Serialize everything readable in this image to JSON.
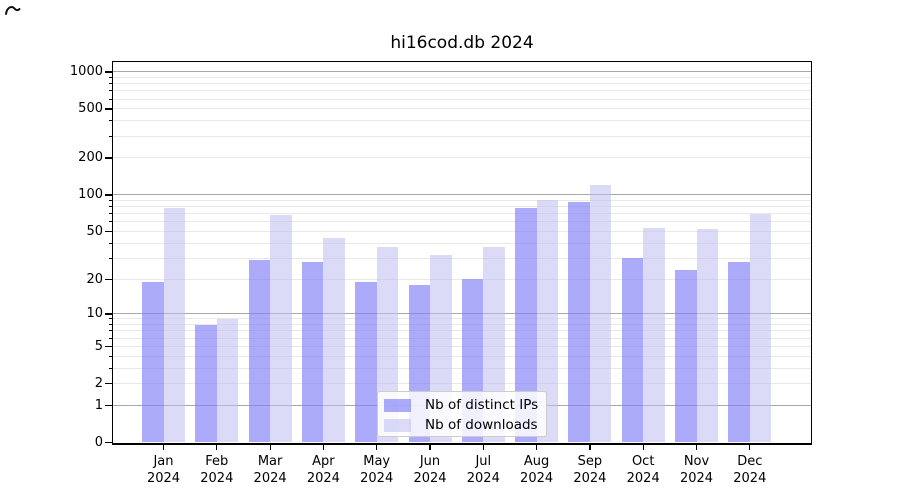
{
  "title": "hi16cod.db 2024",
  "chart_data": {
    "type": "bar",
    "title": "hi16cod.db 2024",
    "categories": [
      "Jan 2024",
      "Feb 2024",
      "Mar 2024",
      "Apr 2024",
      "May 2024",
      "Jun 2024",
      "Jul 2024",
      "Aug 2024",
      "Sep 2024",
      "Oct 2024",
      "Nov 2024",
      "Dec 2024"
    ],
    "series": [
      {
        "name": "Nb of distinct IPs",
        "color": "#aaaaf7",
        "fill": "rgba(124,124,246,0.64)",
        "values": [
          19,
          8,
          29,
          28,
          19,
          18,
          20,
          78,
          87,
          30,
          24,
          28
        ]
      },
      {
        "name": "Nb of downloads",
        "color": "#dcdcf7",
        "fill": "rgba(190,190,243,0.55)",
        "values": [
          78,
          9,
          68,
          44,
          37,
          32,
          37,
          90,
          120,
          53,
          52,
          70
        ]
      }
    ],
    "y_axis": {
      "scale": "log1p",
      "ticks": [
        0,
        1,
        2,
        5,
        10,
        20,
        50,
        100,
        200,
        500,
        1000
      ],
      "minor_ticks": [
        3,
        4,
        6,
        7,
        8,
        9,
        30,
        40,
        60,
        70,
        80,
        90,
        300,
        400,
        600,
        700,
        800,
        900
      ],
      "range": [
        0,
        1200
      ]
    },
    "grid": {
      "major_color": "#a8a8a8",
      "minor_color": "#e9e9e9"
    },
    "legend": {
      "position": "bottom-center-inside",
      "labels": [
        "Nb of distinct IPs",
        "Nb of downloads"
      ]
    }
  }
}
